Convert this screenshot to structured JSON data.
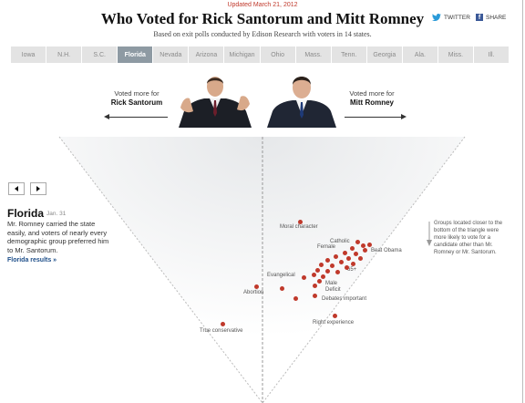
{
  "header": {
    "updated": "Updated March 21, 2012",
    "title": "Who Voted for Rick Santorum and Mitt Romney",
    "subtitle": "Based on exit polls conducted by Edison Research with voters in 14 states."
  },
  "share": {
    "twitter": "TWITTER",
    "facebook": "SHARE"
  },
  "tabs": [
    {
      "label": "Iowa"
    },
    {
      "label": "N.H."
    },
    {
      "label": "S.C."
    },
    {
      "label": "Florida"
    },
    {
      "label": "Nevada"
    },
    {
      "label": "Arizona"
    },
    {
      "label": "Michigan"
    },
    {
      "label": "Ohio"
    },
    {
      "label": "Mass."
    },
    {
      "label": "Tenn."
    },
    {
      "label": "Georgia"
    },
    {
      "label": "Ala."
    },
    {
      "label": "Miss."
    },
    {
      "label": "Ill."
    }
  ],
  "active_tab": "Florida",
  "candidates": {
    "left": {
      "caption": "Voted more for",
      "name": "Rick Santorum"
    },
    "right": {
      "caption": "Voted more for",
      "name": "Mitt Romney"
    }
  },
  "panel": {
    "state": "Florida",
    "date": "Jan. 31",
    "text": "Mr. Romney carried the state easily, and voters of nearly every demographic group preferred him to Mr. Santorum.",
    "link": "Florida results »"
  },
  "legend_note": "Groups located closer to the bottom of the triangle were more likely to vote for a candidate other than Mr. Romney or Mr. Santorum.",
  "labels": {
    "moral": "Moral character",
    "catholic": "Catholic",
    "female": "Female",
    "beat_obama": "Beat Obama",
    "evangelical": "Evangelical",
    "age65": "65+",
    "male": "Male",
    "deficit": "Deficit",
    "abortion": "Abortion",
    "debates": "Debates important",
    "right_exp": "Right experience",
    "true_cons": "True conservative"
  },
  "colors": {
    "dot": "#c0392b",
    "active_tab": "#8e9aa3",
    "link": "#1d4e89"
  }
}
